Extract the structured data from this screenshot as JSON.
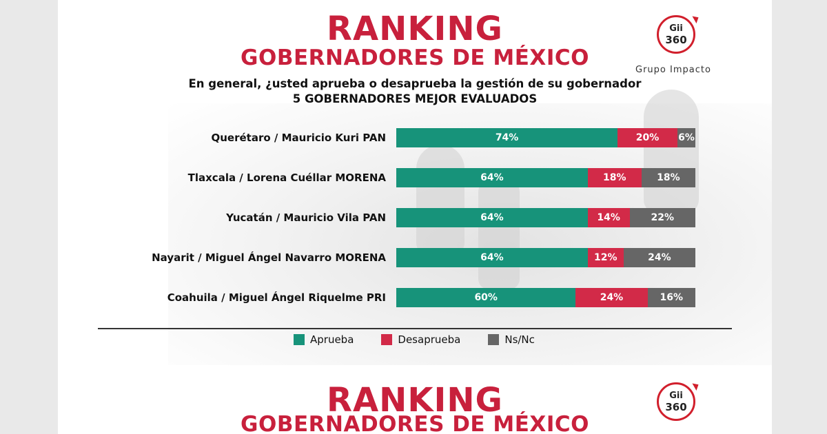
{
  "header": {
    "title": "RANKING",
    "subtitle": "GOBERNADORES DE MÉXICO",
    "question": "En general, ¿usted aprueba o desaprueba la gestión de su gobernador",
    "subquestion": "5 GOBERNADORES MEJOR EVALUADOS"
  },
  "brand": {
    "logo_line1": "Gii",
    "logo_line2": "360",
    "name": "Grupo Impacto"
  },
  "colors": {
    "aprueba": "#17937a",
    "desaprueba": "#d22a48",
    "nsnc": "#666666",
    "title": "#c8203c"
  },
  "chart_data": {
    "type": "bar",
    "orientation": "horizontal",
    "stacked": true,
    "categories": [
      "Querétaro / Mauricio Kuri PAN",
      "Tlaxcala / Lorena Cuéllar MORENA",
      "Yucatán / Mauricio Vila PAN",
      "Nayarit / Miguel Ángel Navarro MORENA",
      "Coahuila / Miguel Ángel Riquelme PRI"
    ],
    "series": [
      {
        "name": "Aprueba",
        "values": [
          74,
          64,
          64,
          64,
          60
        ]
      },
      {
        "name": "Desaprueba",
        "values": [
          20,
          18,
          14,
          12,
          24
        ]
      },
      {
        "name": "Ns/Nc",
        "values": [
          6,
          18,
          22,
          24,
          16
        ]
      }
    ],
    "value_suffix": "%",
    "xlim": [
      0,
      100
    ],
    "legend_position": "bottom"
  },
  "footer_repeat": {
    "title": "RANKING",
    "subtitle": "GOBERNADORES DE MÉXICO",
    "logo_line1": "Gii",
    "logo_line2": "360"
  }
}
